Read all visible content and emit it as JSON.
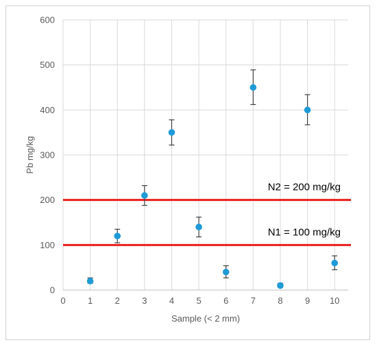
{
  "chart_data": {
    "type": "scatter",
    "title": "",
    "xlabel": "Sample (< 2 mm)",
    "ylabel": "Pb mg/kg",
    "xlim": [
      0,
      10.5
    ],
    "ylim": [
      0,
      600
    ],
    "x_ticks": [
      0,
      1,
      2,
      3,
      4,
      5,
      6,
      7,
      8,
      9,
      10
    ],
    "y_ticks": [
      0,
      100,
      200,
      300,
      400,
      500,
      600
    ],
    "grid": true,
    "series": [
      {
        "x": [
          1,
          2,
          3,
          4,
          5,
          6,
          7,
          8,
          9,
          10
        ],
        "y": [
          20,
          120,
          210,
          350,
          140,
          40,
          450,
          10,
          400,
          60
        ],
        "error_low": [
          15,
          105,
          188,
          322,
          118,
          27,
          412,
          6,
          367,
          45
        ],
        "error_high": [
          27,
          135,
          232,
          378,
          162,
          54,
          489,
          15,
          434,
          76
        ],
        "color": "#1f9bd7"
      }
    ],
    "reference_lines": [
      {
        "label": "N2 = 200 mg/kg",
        "y": 200,
        "color": "#ee1c1c"
      },
      {
        "label": "N1 = 100 mg/kg",
        "y": 100,
        "color": "#ee1c1c"
      }
    ]
  }
}
